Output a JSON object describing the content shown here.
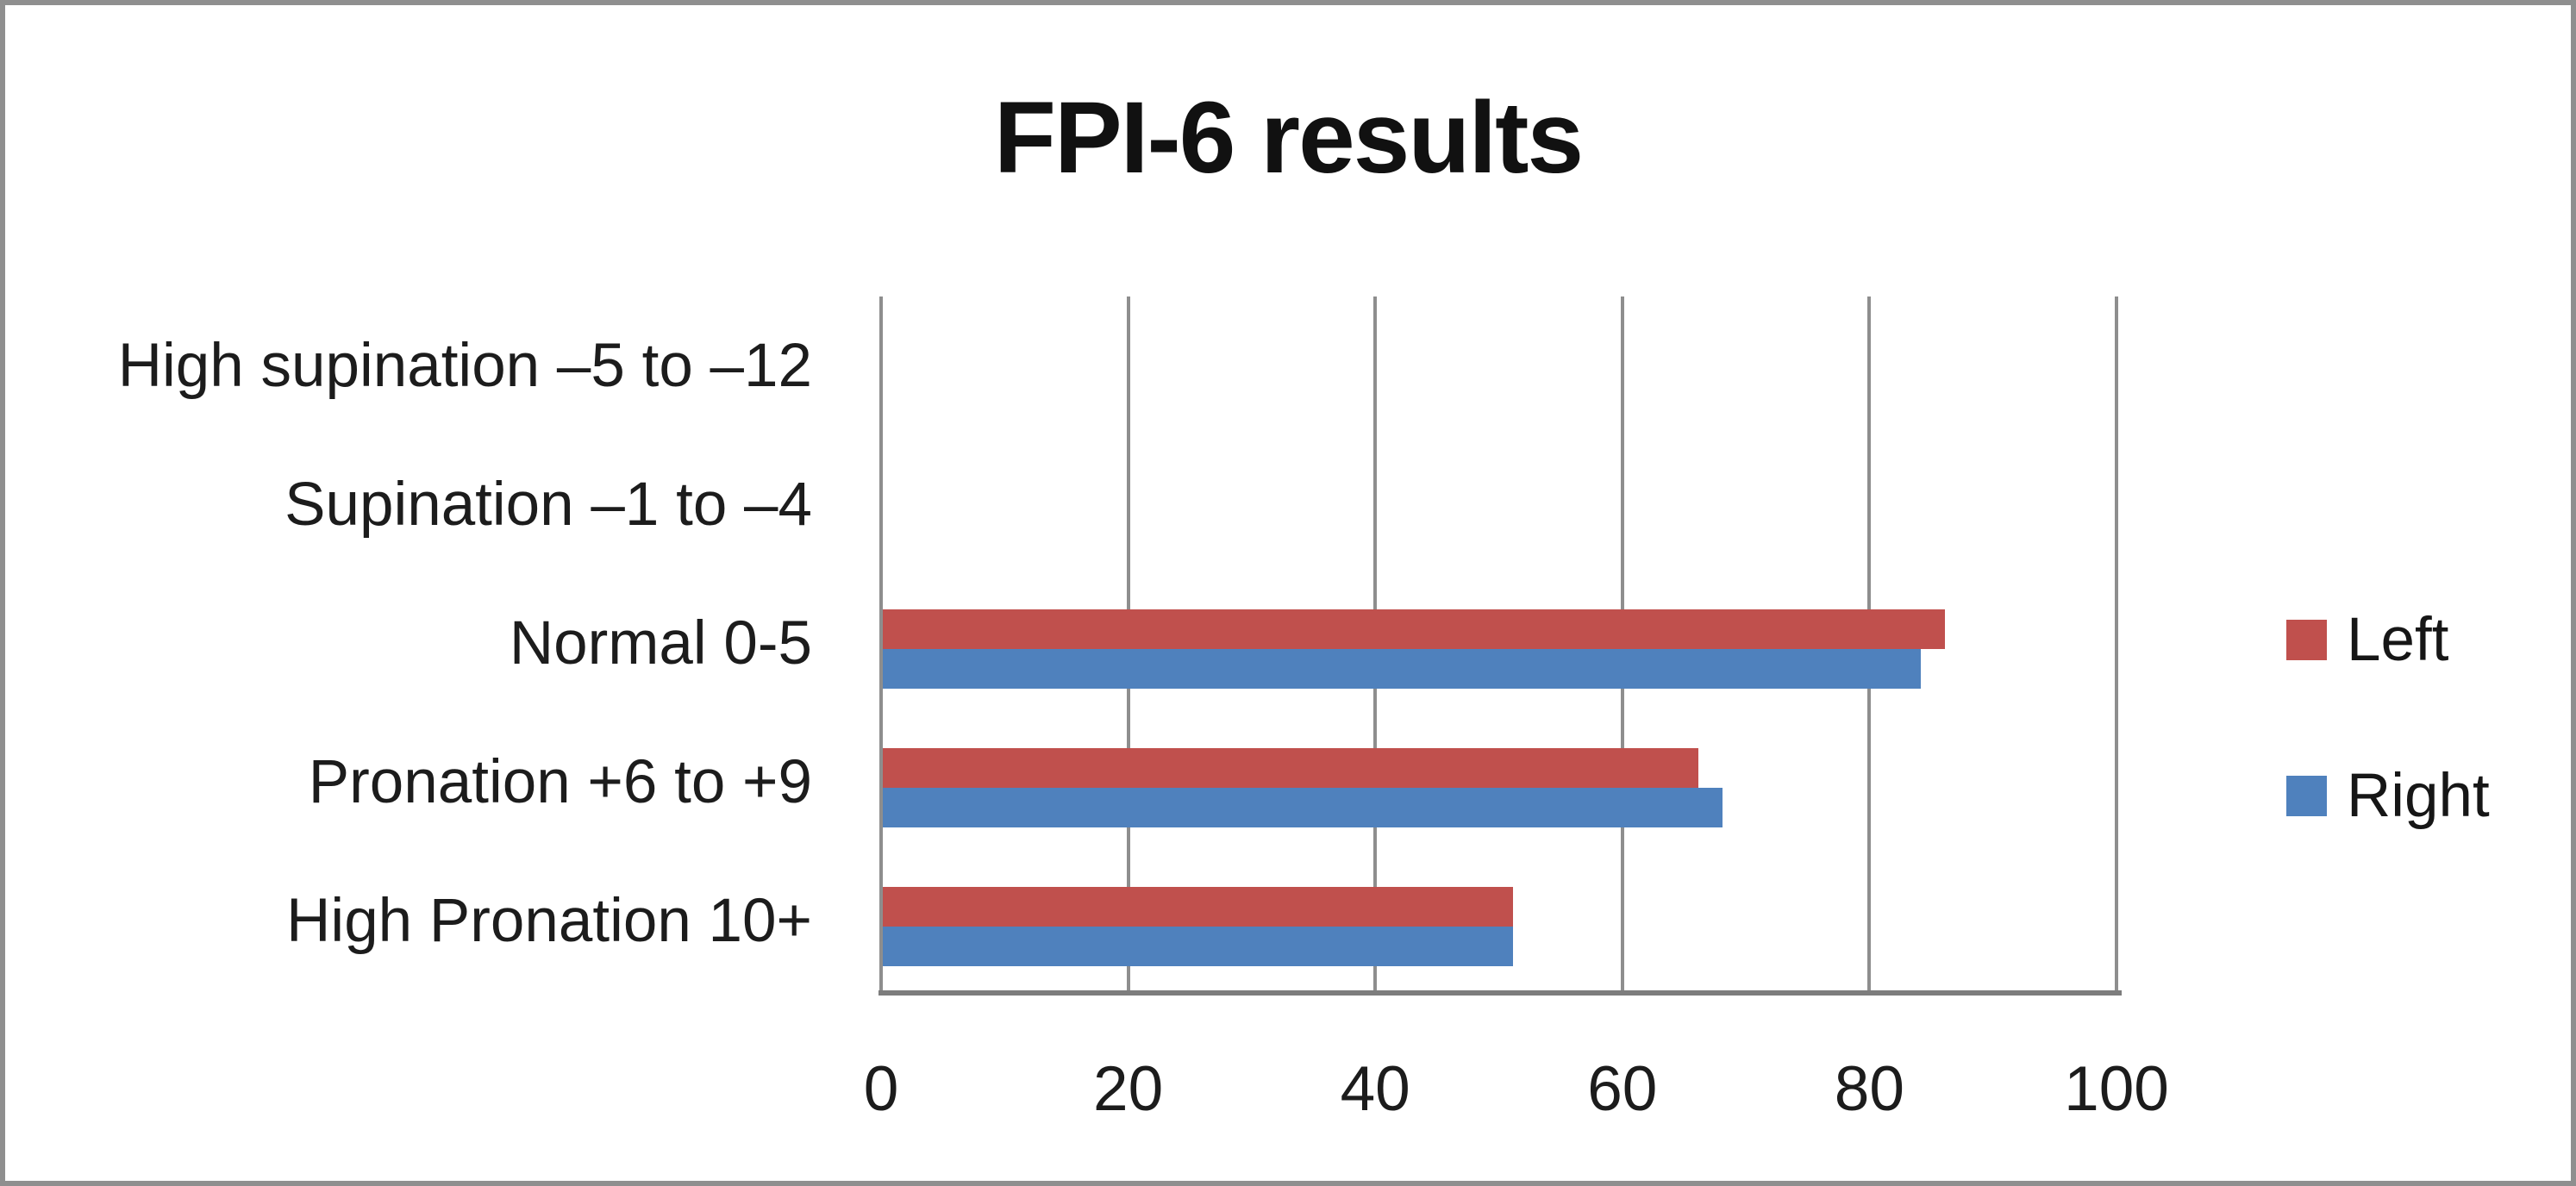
{
  "chart_data": {
    "type": "bar",
    "orientation": "horizontal",
    "title": "FPI-6 results",
    "categories": [
      "High supination –5 to –12",
      "Supination –1 to –4",
      "Normal 0-5",
      "Pronation +6 to +9",
      "High Pronation 10+"
    ],
    "series": [
      {
        "name": "Left",
        "color": "#C0504D",
        "values": [
          0,
          0,
          86,
          66,
          51
        ]
      },
      {
        "name": "Right",
        "color": "#4F81BD",
        "values": [
          0,
          0,
          84,
          68,
          51
        ]
      }
    ],
    "xlim": [
      0,
      100
    ],
    "x_ticks": [
      0,
      20,
      40,
      60,
      80,
      100
    ],
    "grid": true,
    "legend_position": "right",
    "xlabel": "",
    "ylabel": ""
  },
  "style": {
    "gridline_color": "#8E8E8E",
    "axis_color": "#7D7D7D",
    "border_color": "#8F8F8F",
    "bar_red": "#C0504D",
    "bar_blue": "#4F81BD",
    "text_color": "#1C1C1C",
    "background": "#FFFFFF"
  }
}
